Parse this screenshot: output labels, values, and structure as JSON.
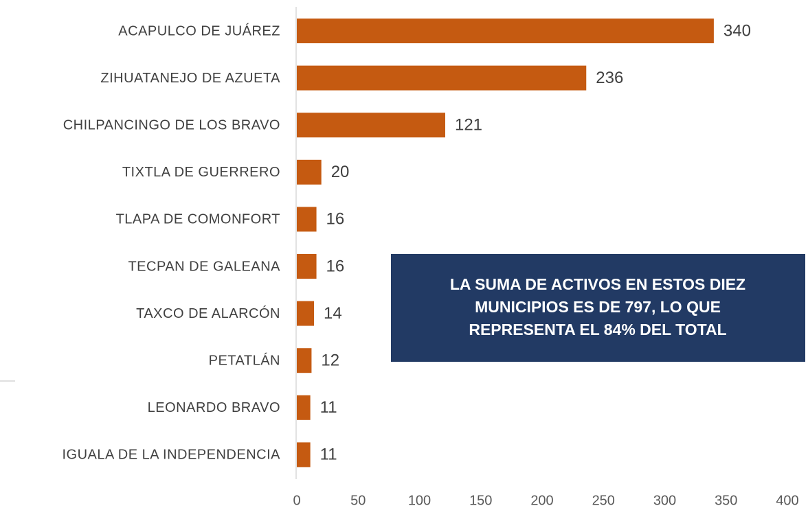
{
  "chart_data": {
    "type": "bar",
    "orientation": "horizontal",
    "categories": [
      "ACAPULCO DE JUÁREZ",
      "ZIHUATANEJO DE AZUETA",
      "CHILPANCINGO DE LOS BRAVO",
      "TIXTLA DE GUERRERO",
      "TLAPA DE COMONFORT",
      "TECPAN DE GALEANA",
      "TAXCO DE ALARCÓN",
      "PETATLÁN",
      "LEONARDO BRAVO",
      "IGUALA DE LA INDEPENDENCIA"
    ],
    "values": [
      340,
      236,
      121,
      20,
      16,
      16,
      14,
      12,
      11,
      11
    ],
    "color": "#c55a11",
    "xlim": [
      0,
      400
    ],
    "xticks": [
      0,
      50,
      100,
      150,
      200,
      250,
      300,
      350,
      400
    ],
    "annotation": [
      "LA SUMA DE ACTIVOS EN ESTOS DIEZ",
      "MUNICIPIOS ES DE 797, LO QUE",
      "REPRESENTA EL 84% DEL TOTAL"
    ]
  }
}
